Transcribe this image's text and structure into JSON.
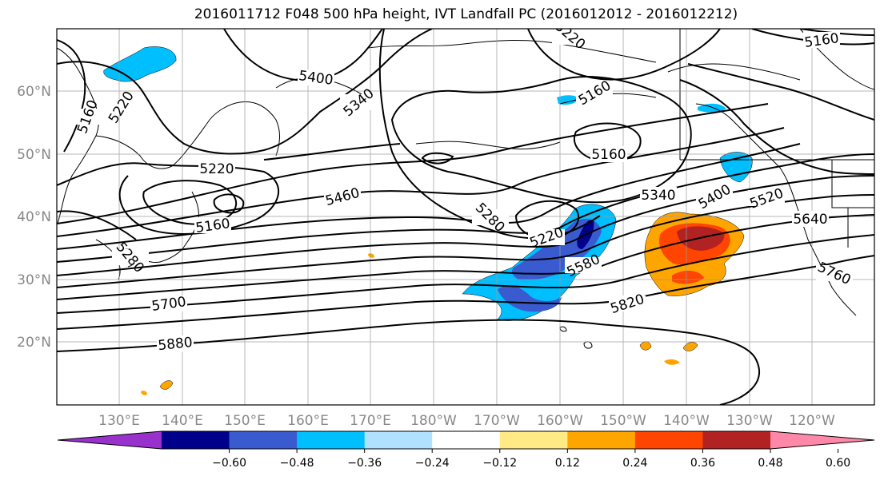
{
  "title": "2016011712 F048 500 hPa height, IVT Landfall PC (2016012012 - 2016012212)",
  "map": {
    "lon_labels": [
      "130°E",
      "140°E",
      "150°E",
      "160°E",
      "170°E",
      "180°W",
      "170°W",
      "160°W",
      "150°W",
      "140°W",
      "130°W",
      "120°W"
    ],
    "lat_labels": [
      "60°N",
      "50°N",
      "40°N",
      "30°N",
      "20°N"
    ],
    "contour_labels": [
      "5400",
      "5220",
      "5340",
      "5160",
      "5220",
      "5160",
      "5280",
      "5160",
      "5340",
      "5400",
      "5460",
      "5220",
      "5280",
      "5520",
      "5640",
      "5580",
      "5700",
      "5820",
      "5760",
      "5880",
      "5160",
      "5220",
      "5160"
    ]
  },
  "colorbar": {
    "colors": [
      "#9932cc",
      "#00008b",
      "#3a5bcf",
      "#00bfff",
      "#b0e2ff",
      "#ffffff",
      "#ffea86",
      "#ffa500",
      "#ff4500",
      "#b22222",
      "#ff88a8"
    ],
    "ticks": [
      "−0.60",
      "−0.48",
      "−0.36",
      "−0.24",
      "−0.12",
      "0.12",
      "0.24",
      "0.36",
      "0.48",
      "0.60"
    ]
  }
}
